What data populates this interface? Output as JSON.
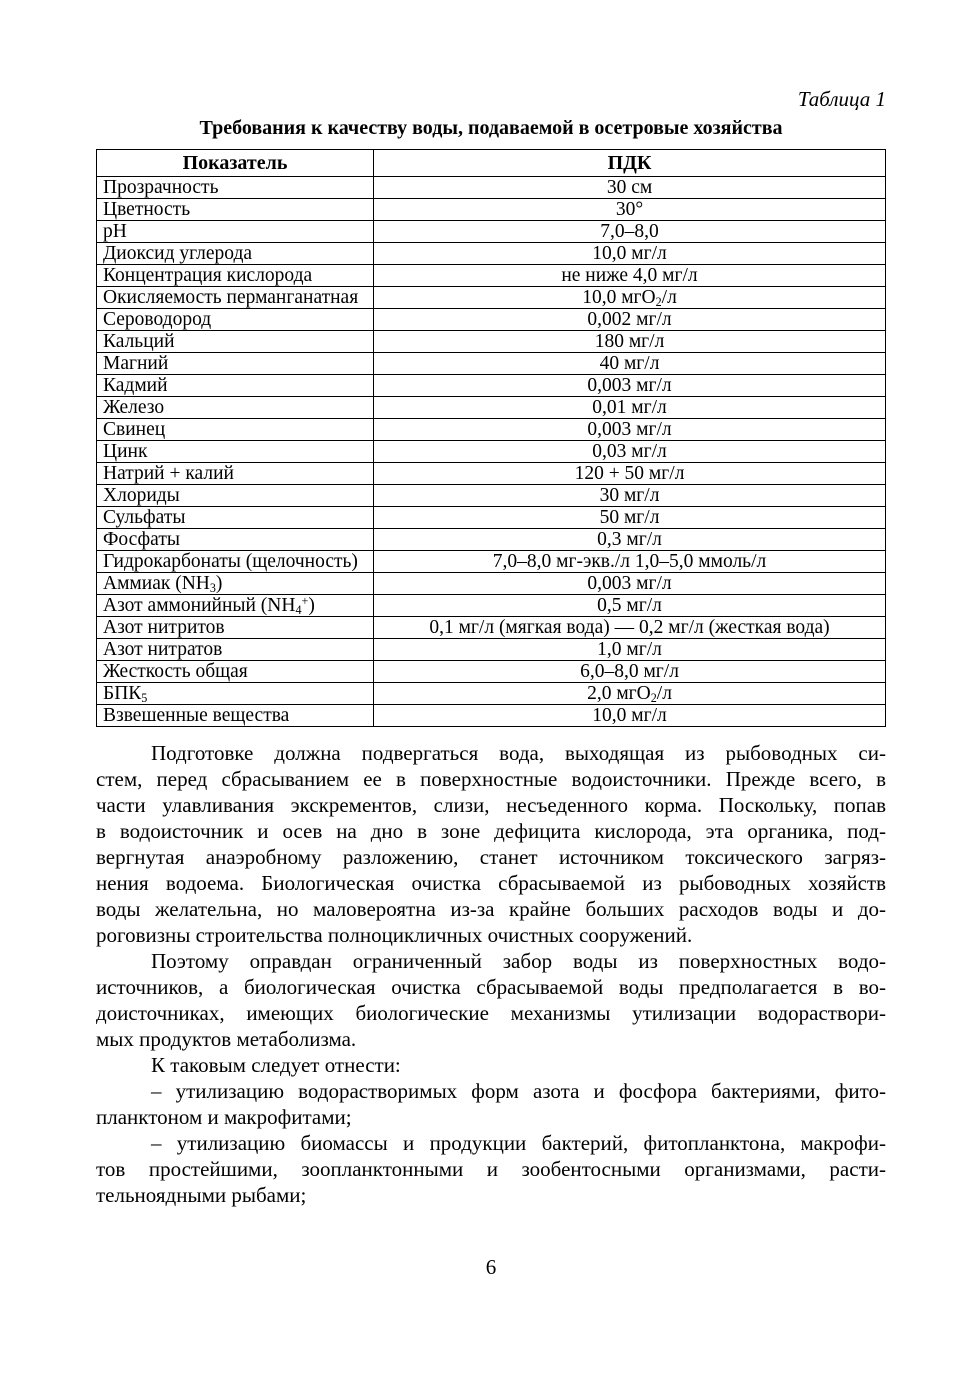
{
  "page": {
    "table_caption": "Таблица 1",
    "table_title": "Требования к качеству воды, подаваемой в осетровые хозяйства",
    "page_number": "6"
  },
  "table": {
    "headers": [
      "Показатель",
      "ПДК"
    ],
    "rows": [
      [
        "Прозрачность",
        "30 см"
      ],
      [
        "Цветность",
        "30°"
      ],
      [
        "pH",
        "7,0–8,0"
      ],
      [
        "Диоксид углерода",
        "10,0 мг/л"
      ],
      [
        "Концентрация кислорода",
        "не ниже 4,0 мг/л"
      ],
      [
        "Окисляемость перманганатная",
        "10,0 мгО_{2}/л"
      ],
      [
        "Сероводород",
        "0,002 мг/л"
      ],
      [
        "Кальций",
        "180 мг/л"
      ],
      [
        "Магний",
        "40 мг/л"
      ],
      [
        "Кадмий",
        "0,003 мг/л"
      ],
      [
        "Железо",
        "0,01 мг/л"
      ],
      [
        "Свинец",
        "0,003 мг/л"
      ],
      [
        "Цинк",
        "0,03 мг/л"
      ],
      [
        "Натрий + калий",
        "120 + 50 мг/л"
      ],
      [
        "Хлориды",
        "30 мг/л"
      ],
      [
        "Сульфаты",
        "50 мг/л"
      ],
      [
        "Фосфаты",
        "0,3 мг/л"
      ],
      [
        "Гидрокарбонаты (щелочность)",
        "7,0–8,0 мг-экв./л 1,0–5,0 ммоль/л"
      ],
      [
        "Аммиак (NH_{3})",
        "0,003 мг/л"
      ],
      [
        "Азот аммонийный (NH_{4}^{+})",
        "0,5 мг/л"
      ],
      [
        "Азот нитритов",
        "0,1 мг/л (мягкая вода) — 0,2 мг/л (жесткая вода)"
      ],
      [
        "Азот нитратов",
        "1,0 мг/л"
      ],
      [
        "Жесткость общая",
        "6,0–8,0 мг/л"
      ],
      [
        "БПК_{5}",
        "2,0 мгО_{2}/л"
      ],
      [
        "Взвешенные вещества",
        "10,0 мг/л"
      ]
    ]
  },
  "paragraphs": [
    {
      "lines": [
        "Подготовке должна подвергаться вода, выходящая из рыбоводных си-",
        "стем, перед сбрасыванием ее в поверхностные водоисточники. Прежде всего, в",
        "части улавливания экскрементов, слизи, несъеденного корма. Поскольку, попав",
        "в водоисточник и осев на дно в зоне дефицита кислорода, эта органика, под-",
        "вергнутая анаэробному разложению, станет источником токсического загряз-",
        "нения водоема. Биологическая очистка сбрасываемой из рыбоводных хозяйств",
        "воды желательна, но маловероятна из-за крайне больших расходов воды и до-",
        "роговизны строительства полноцикличных очистных сооружений."
      ]
    },
    {
      "lines": [
        "Поэтому оправдан ограниченный забор воды из поверхностных водо-",
        "источников, а биологическая очистка сбрасываемой воды предполагается в во-",
        "доисточниках, имеющих биологические механизмы утилизации водораствори-",
        "мых продуктов метаболизма."
      ]
    },
    {
      "lines": [
        "К таковым следует отнести:"
      ]
    },
    {
      "lines": [
        "– утилизацию водорастворимых форм азота и фосфора бактериями, фито-",
        "планктоном и макрофитами;"
      ]
    },
    {
      "lines": [
        "– утилизацию биомассы и продукции бактерий, фитопланктона, макрофи-",
        "тов простейшими, зоопланктонными и зообентосными организмами, расти-",
        "тельноядными рыбами;"
      ]
    }
  ]
}
